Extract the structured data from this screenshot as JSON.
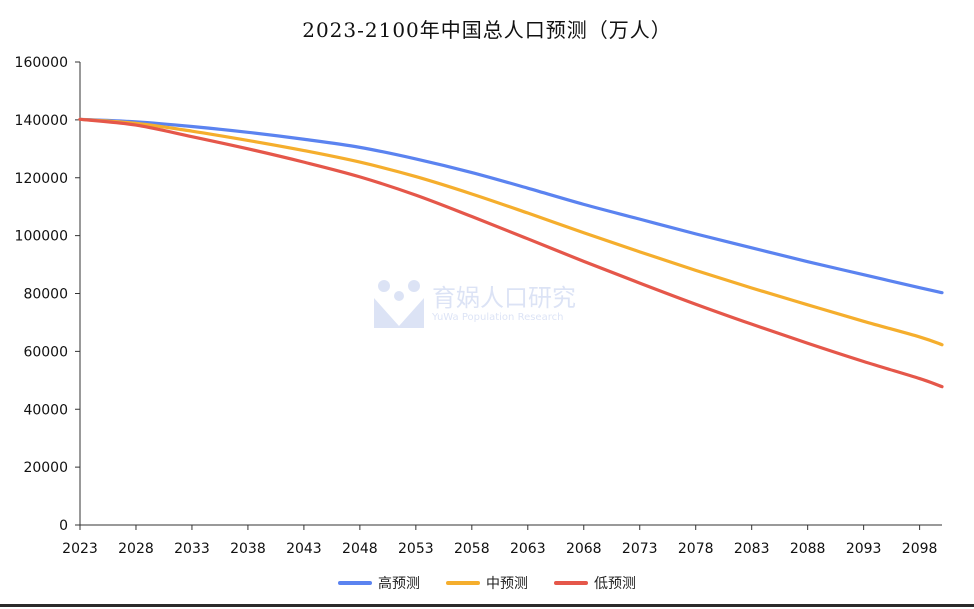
{
  "chart_data": {
    "type": "line",
    "title": "2023-2100年中国总人口预测（万人）",
    "xlabel": "",
    "ylabel": "",
    "ylim": [
      0,
      160000
    ],
    "yticks": [
      0,
      20000,
      40000,
      60000,
      80000,
      100000,
      120000,
      140000,
      160000
    ],
    "xticks": [
      "2023",
      "2028",
      "2033",
      "2038",
      "2043",
      "2048",
      "2053",
      "2058",
      "2063",
      "2068",
      "2073",
      "2078",
      "2083",
      "2088",
      "2093",
      "2098"
    ],
    "xlim": [
      2023,
      2100
    ],
    "grid": false,
    "legend_position": "bottom",
    "x": [
      2023,
      2028,
      2033,
      2038,
      2043,
      2048,
      2053,
      2058,
      2063,
      2068,
      2073,
      2078,
      2083,
      2088,
      2093,
      2098,
      2100
    ],
    "series": [
      {
        "name": "高预测",
        "color": "#5B83F0",
        "values": [
          140200,
          139300,
          137700,
          135700,
          133300,
          130500,
          126500,
          121800,
          116400,
          110800,
          105700,
          100600,
          95800,
          91000,
          86500,
          82000,
          80300
        ]
      },
      {
        "name": "中预测",
        "color": "#F5AE2D",
        "values": [
          140200,
          138800,
          136100,
          132900,
          129400,
          125400,
          120400,
          114400,
          107800,
          101000,
          94400,
          88000,
          81900,
          76100,
          70400,
          65000,
          62300
        ]
      },
      {
        "name": "低预测",
        "color": "#E5574A",
        "values": [
          140200,
          138200,
          134200,
          130000,
          125400,
          120300,
          114000,
          106600,
          98900,
          91100,
          83600,
          76300,
          69400,
          62800,
          56500,
          50600,
          47800
        ]
      }
    ]
  },
  "watermark": {
    "name": "育娲人口研究",
    "subtitle": "YuWa Population Research"
  }
}
